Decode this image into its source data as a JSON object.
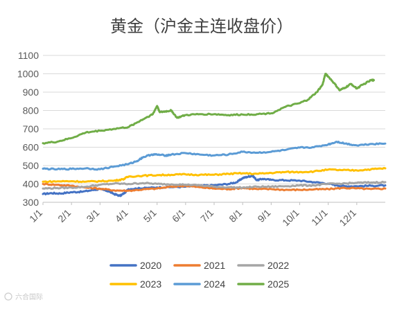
{
  "chart_data": {
    "type": "line",
    "title": "黄金（沪金主连收盘价）",
    "ylim": [
      300,
      1100
    ],
    "yticks": [
      300,
      400,
      500,
      600,
      700,
      800,
      900,
      1000,
      1100
    ],
    "xlim": [
      0,
      12
    ],
    "xticks": [
      {
        "label": "1/1",
        "x": 0
      },
      {
        "label": "2/1",
        "x": 1
      },
      {
        "label": "3/1",
        "x": 2
      },
      {
        "label": "4/1",
        "x": 3
      },
      {
        "label": "5/1",
        "x": 4
      },
      {
        "label": "6/1",
        "x": 5
      },
      {
        "label": "7/1",
        "x": 6
      },
      {
        "label": "8/1",
        "x": 7
      },
      {
        "label": "9/1",
        "x": 8
      },
      {
        "label": "10/1",
        "x": 9
      },
      {
        "label": "11/1",
        "x": 10
      },
      {
        "label": "12/1",
        "x": 11
      }
    ],
    "grid": true,
    "legend_position": "bottom",
    "series": [
      {
        "name": "2020",
        "color": "#4472C4",
        "points": [
          [
            0,
            345
          ],
          [
            0.3,
            350
          ],
          [
            0.6,
            348
          ],
          [
            1,
            355
          ],
          [
            1.4,
            358
          ],
          [
            1.8,
            368
          ],
          [
            2,
            372
          ],
          [
            2.3,
            360
          ],
          [
            2.5,
            345
          ],
          [
            2.7,
            335
          ],
          [
            2.85,
            350
          ],
          [
            3,
            372
          ],
          [
            3.3,
            375
          ],
          [
            3.6,
            378
          ],
          [
            4,
            381
          ],
          [
            4.5,
            383
          ],
          [
            5,
            385
          ],
          [
            5.5,
            390
          ],
          [
            6,
            393
          ],
          [
            6.5,
            400
          ],
          [
            6.8,
            410
          ],
          [
            7,
            432
          ],
          [
            7.2,
            440
          ],
          [
            7.35,
            445
          ],
          [
            7.5,
            420
          ],
          [
            7.7,
            428
          ],
          [
            8,
            422
          ],
          [
            8.5,
            420
          ],
          [
            9,
            418
          ],
          [
            9.5,
            410
          ],
          [
            10,
            402
          ],
          [
            10.3,
            392
          ],
          [
            10.6,
            388
          ],
          [
            11,
            388
          ],
          [
            11.5,
            390
          ],
          [
            12,
            392
          ]
        ]
      },
      {
        "name": "2021",
        "color": "#ED7D31",
        "points": [
          [
            0,
            400
          ],
          [
            0.5,
            395
          ],
          [
            1,
            390
          ],
          [
            1.5,
            380
          ],
          [
            2,
            374
          ],
          [
            2.5,
            365
          ],
          [
            3,
            363
          ],
          [
            3.5,
            370
          ],
          [
            4,
            375
          ],
          [
            4.5,
            385
          ],
          [
            5,
            390
          ],
          [
            5.5,
            382
          ],
          [
            6,
            375
          ],
          [
            6.5,
            372
          ],
          [
            7,
            378
          ],
          [
            7.5,
            372
          ],
          [
            8,
            372
          ],
          [
            8.5,
            368
          ],
          [
            9,
            368
          ],
          [
            9.5,
            370
          ],
          [
            10,
            372
          ],
          [
            10.5,
            378
          ],
          [
            11,
            376
          ],
          [
            11.5,
            372
          ],
          [
            12,
            375
          ]
        ]
      },
      {
        "name": "2022",
        "color": "#A5A5A5",
        "points": [
          [
            0,
            375
          ],
          [
            0.5,
            378
          ],
          [
            1,
            380
          ],
          [
            1.5,
            385
          ],
          [
            2,
            395
          ],
          [
            2.5,
            402
          ],
          [
            3,
            400
          ],
          [
            3.5,
            405
          ],
          [
            4,
            400
          ],
          [
            4.5,
            398
          ],
          [
            5,
            396
          ],
          [
            5.5,
            392
          ],
          [
            6,
            385
          ],
          [
            6.5,
            382
          ],
          [
            7,
            380
          ],
          [
            7.5,
            385
          ],
          [
            8,
            385
          ],
          [
            8.5,
            388
          ],
          [
            9,
            392
          ],
          [
            9.5,
            392
          ],
          [
            10,
            400
          ],
          [
            10.5,
            402
          ],
          [
            11,
            406
          ],
          [
            11.5,
            408
          ],
          [
            12,
            410
          ]
        ]
      },
      {
        "name": "2023",
        "color": "#FFC000",
        "points": [
          [
            0,
            412
          ],
          [
            0.5,
            414
          ],
          [
            1,
            415
          ],
          [
            1.5,
            412
          ],
          [
            2,
            415
          ],
          [
            2.5,
            418
          ],
          [
            2.8,
            425
          ],
          [
            3,
            440
          ],
          [
            3.5,
            445
          ],
          [
            4,
            448
          ],
          [
            4.5,
            450
          ],
          [
            5,
            452
          ],
          [
            5.5,
            450
          ],
          [
            6,
            450
          ],
          [
            6.5,
            455
          ],
          [
            7,
            458
          ],
          [
            7.5,
            455
          ],
          [
            8,
            460
          ],
          [
            8.5,
            465
          ],
          [
            9,
            465
          ],
          [
            9.5,
            468
          ],
          [
            10,
            478
          ],
          [
            10.5,
            475
          ],
          [
            11,
            474
          ],
          [
            11.5,
            480
          ],
          [
            12,
            485
          ]
        ]
      },
      {
        "name": "2024",
        "color": "#5B9BD5",
        "points": [
          [
            0,
            483
          ],
          [
            0.5,
            480
          ],
          [
            1,
            482
          ],
          [
            1.5,
            485
          ],
          [
            2,
            480
          ],
          [
            2.5,
            495
          ],
          [
            3,
            508
          ],
          [
            3.3,
            525
          ],
          [
            3.5,
            545
          ],
          [
            3.8,
            560
          ],
          [
            4,
            560
          ],
          [
            4.3,
            555
          ],
          [
            4.5,
            560
          ],
          [
            5,
            568
          ],
          [
            5.5,
            560
          ],
          [
            6,
            555
          ],
          [
            6.5,
            560
          ],
          [
            7,
            575
          ],
          [
            7.5,
            570
          ],
          [
            8,
            575
          ],
          [
            8.5,
            585
          ],
          [
            9,
            598
          ],
          [
            9.5,
            600
          ],
          [
            10,
            615
          ],
          [
            10.3,
            630
          ],
          [
            10.6,
            620
          ],
          [
            11,
            610
          ],
          [
            11.5,
            618
          ],
          [
            12,
            620
          ]
        ]
      },
      {
        "name": "2025",
        "color": "#70AD47",
        "points": [
          [
            0,
            622
          ],
          [
            0.5,
            630
          ],
          [
            1,
            650
          ],
          [
            1.5,
            680
          ],
          [
            2,
            690
          ],
          [
            2.5,
            700
          ],
          [
            3,
            710
          ],
          [
            3.3,
            735
          ],
          [
            3.6,
            760
          ],
          [
            3.85,
            780
          ],
          [
            4,
            825
          ],
          [
            4.1,
            790
          ],
          [
            4.3,
            795
          ],
          [
            4.5,
            800
          ],
          [
            4.7,
            760
          ],
          [
            5,
            775
          ],
          [
            5.5,
            780
          ],
          [
            6,
            780
          ],
          [
            6.5,
            775
          ],
          [
            7,
            778
          ],
          [
            7.5,
            780
          ],
          [
            8,
            785
          ],
          [
            8.5,
            820
          ],
          [
            9,
            840
          ],
          [
            9.3,
            860
          ],
          [
            9.6,
            900
          ],
          [
            9.8,
            940
          ],
          [
            9.9,
            1000
          ],
          [
            10,
            985
          ],
          [
            10.2,
            950
          ],
          [
            10.4,
            910
          ],
          [
            10.6,
            925
          ],
          [
            10.8,
            945
          ],
          [
            11,
            920
          ],
          [
            11.2,
            940
          ],
          [
            11.5,
            965
          ],
          [
            11.6,
            965
          ]
        ]
      }
    ]
  },
  "watermark": {
    "text": "六合国际"
  }
}
